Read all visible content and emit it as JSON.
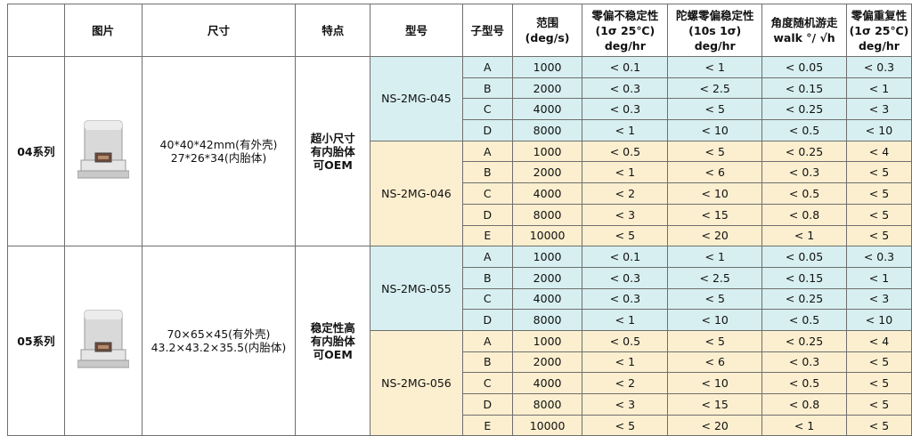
{
  "headers": {
    "image": "图片",
    "size": "尺寸",
    "feature": "特点",
    "model": "型号",
    "submodel": "子型号",
    "range": [
      "范围",
      "(deg/s)"
    ],
    "bias_instability": [
      "零偏不稳定性",
      "(1σ 25℃)",
      "deg/hr"
    ],
    "gyro_bias_stability": [
      "陀螺零偏稳定性",
      "(10s 1σ)",
      "deg/hr"
    ],
    "angle_random_walk": [
      "角度随机游走",
      "walk °/ √h"
    ],
    "bias_repeatability": [
      "零偏重复性",
      "(1σ 25℃)",
      "deg/hr"
    ]
  },
  "series": [
    {
      "name": "04系列",
      "size": [
        "40*40*42mm(有外壳)",
        "27*26*34(内胎体)"
      ],
      "feature": [
        "超小尺寸",
        "有内胎体",
        "可OEM"
      ],
      "models": [
        {
          "name": "NS-2MG-045",
          "color": "#d7eff0",
          "rows": [
            {
              "sub": "A",
              "range": "1000",
              "bias": "< 0.1",
              "stab": "< 1",
              "arw": "< 0.05",
              "rep": "< 0.3"
            },
            {
              "sub": "B",
              "range": "2000",
              "bias": "< 0.3",
              "stab": "< 2.5",
              "arw": "< 0.15",
              "rep": "< 1"
            },
            {
              "sub": "C",
              "range": "4000",
              "bias": "< 0.3",
              "stab": "< 5",
              "arw": "< 0.25",
              "rep": "< 3"
            },
            {
              "sub": "D",
              "range": "8000",
              "bias": "< 1",
              "stab": "< 10",
              "arw": "< 0.5",
              "rep": "< 10"
            }
          ]
        },
        {
          "name": "NS-2MG-046",
          "color": "#fcefcf",
          "rows": [
            {
              "sub": "A",
              "range": "1000",
              "bias": "< 0.5",
              "stab": "< 5",
              "arw": "< 0.25",
              "rep": "< 4"
            },
            {
              "sub": "B",
              "range": "2000",
              "bias": "< 1",
              "stab": "< 6",
              "arw": "< 0.3",
              "rep": "< 5"
            },
            {
              "sub": "C",
              "range": "4000",
              "bias": "< 2",
              "stab": "< 10",
              "arw": "< 0.5",
              "rep": "< 5"
            },
            {
              "sub": "D",
              "range": "8000",
              "bias": "< 3",
              "stab": "< 15",
              "arw": "< 0.8",
              "rep": "< 5"
            },
            {
              "sub": "E",
              "range": "10000",
              "bias": "< 5",
              "stab": "< 20",
              "arw": "< 1",
              "rep": "< 5"
            }
          ]
        }
      ]
    },
    {
      "name": "05系列",
      "size": [
        "70×65×45(有外壳)",
        "43.2×43.2×35.5(内胎体)"
      ],
      "feature": [
        "稳定性高",
        "有内胎体",
        "可OEM"
      ],
      "models": [
        {
          "name": "NS-2MG-055",
          "color": "#d7eff0",
          "rows": [
            {
              "sub": "A",
              "range": "1000",
              "bias": "< 0.1",
              "stab": "< 1",
              "arw": "< 0.05",
              "rep": "< 0.3"
            },
            {
              "sub": "B",
              "range": "2000",
              "bias": "< 0.3",
              "stab": "< 2.5",
              "arw": "< 0.15",
              "rep": "< 1"
            },
            {
              "sub": "C",
              "range": "4000",
              "bias": "< 0.3",
              "stab": "< 5",
              "arw": "< 0.25",
              "rep": "< 3"
            },
            {
              "sub": "D",
              "range": "8000",
              "bias": "< 1",
              "stab": "< 10",
              "arw": "< 0.5",
              "rep": "< 10"
            }
          ]
        },
        {
          "name": "NS-2MG-056",
          "color": "#fcefcf",
          "rows": [
            {
              "sub": "A",
              "range": "1000",
              "bias": "< 0.5",
              "stab": "< 5",
              "arw": "< 0.25",
              "rep": "< 4"
            },
            {
              "sub": "B",
              "range": "2000",
              "bias": "< 1",
              "stab": "< 6",
              "arw": "< 0.3",
              "rep": "< 5"
            },
            {
              "sub": "C",
              "range": "4000",
              "bias": "< 2",
              "stab": "< 10",
              "arw": "< 0.5",
              "rep": "< 5"
            },
            {
              "sub": "D",
              "range": "8000",
              "bias": "< 3",
              "stab": "< 15",
              "arw": "< 0.8",
              "rep": "< 5"
            },
            {
              "sub": "E",
              "range": "10000",
              "bias": "< 5",
              "stab": "< 20",
              "arw": "< 1",
              "rep": "< 5"
            }
          ]
        }
      ]
    }
  ]
}
